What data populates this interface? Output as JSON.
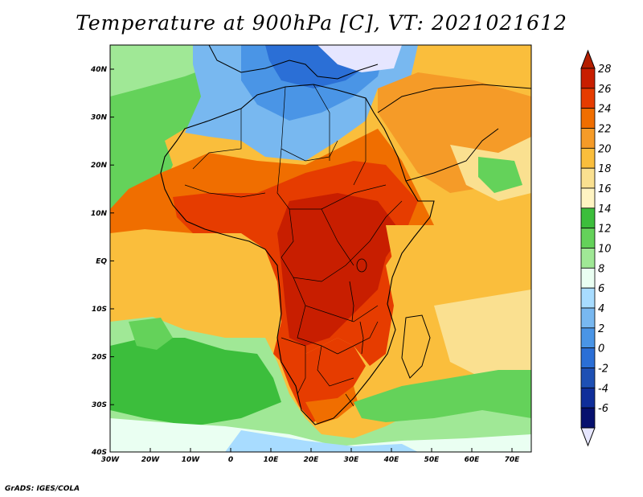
{
  "title": "Temperature at 900hPa [C], VT: 2021021612",
  "credit": "GrADS: IGES/COLA",
  "map": {
    "variable": "Temperature",
    "level": "900hPa",
    "units": "C",
    "valid_time": "2021021612",
    "lon_ticks": [
      "30W",
      "20W",
      "10W",
      "0",
      "10E",
      "20E",
      "30E",
      "40E",
      "50E",
      "60E",
      "70E"
    ],
    "lat_ticks": [
      "40N",
      "30N",
      "20N",
      "10N",
      "EQ",
      "10S",
      "20S",
      "30S",
      "40S"
    ]
  },
  "colorbar": {
    "labels": [
      "28",
      "26",
      "24",
      "22",
      "20",
      "18",
      "16",
      "14",
      "12",
      "10",
      "8",
      "6",
      "4",
      "2",
      "0",
      "-2",
      "-4",
      "-6"
    ],
    "colors": [
      "#c81e00",
      "#e63c00",
      "#f06e00",
      "#f59b28",
      "#fabe3c",
      "#fae090",
      "#fff4c2",
      "#3cbe3c",
      "#64d25a",
      "#a0e896",
      "#eafff2",
      "#a8dcff",
      "#78b8f0",
      "#4a95e6",
      "#2b6fd6",
      "#1e50b4",
      "#0f2e9a",
      "#06106e"
    ],
    "top_arrow_color": "#b41e00",
    "bottom_arrow_color": "#e6e6ff"
  }
}
